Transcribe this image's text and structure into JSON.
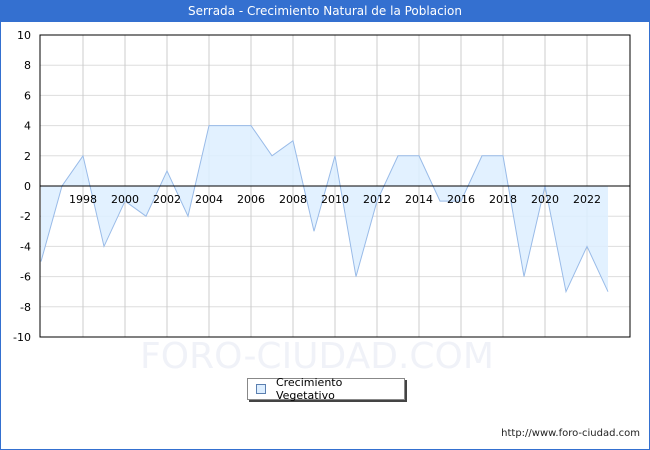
{
  "header": {
    "title": "Serrada - Crecimiento Natural de la Poblacion"
  },
  "legend": {
    "label": "Crecimiento Vegetativo"
  },
  "footer": {
    "url": "http://www.foro-ciudad.com"
  },
  "watermark": "FORO-CIUDAD.COM",
  "colors": {
    "titlebar": "#3470d0",
    "area_fill": "#ddeeff",
    "line": "#99bbe8"
  },
  "chart_data": {
    "type": "area",
    "title": "Serrada - Crecimiento Natural de la Poblacion",
    "xlabel": "",
    "ylabel": "",
    "ylim": [
      -10,
      10
    ],
    "yticks": [
      -10,
      -8,
      -6,
      -4,
      -2,
      0,
      2,
      4,
      6,
      8,
      10
    ],
    "xtick_labels": [
      "1998",
      "2000",
      "2002",
      "2004",
      "2006",
      "2008",
      "2010",
      "2012",
      "2014",
      "2016",
      "2018",
      "2020",
      "2022"
    ],
    "grid": true,
    "legend_position": "bottom-center",
    "x": [
      1996,
      1997,
      1998,
      1999,
      2000,
      2001,
      2002,
      2003,
      2004,
      2005,
      2006,
      2007,
      2008,
      2009,
      2010,
      2011,
      2012,
      2013,
      2014,
      2015,
      2016,
      2017,
      2018,
      2019,
      2020,
      2021,
      2022,
      2023
    ],
    "series": [
      {
        "name": "Crecimiento Vegetativo",
        "values": [
          -5,
          0,
          2,
          -4,
          -1,
          -2,
          1,
          -2,
          4,
          4,
          4,
          2,
          3,
          -3,
          2,
          -6,
          -1,
          2,
          2,
          -1,
          -1,
          2,
          2,
          -6,
          0,
          -7,
          -4,
          -7
        ]
      }
    ]
  }
}
